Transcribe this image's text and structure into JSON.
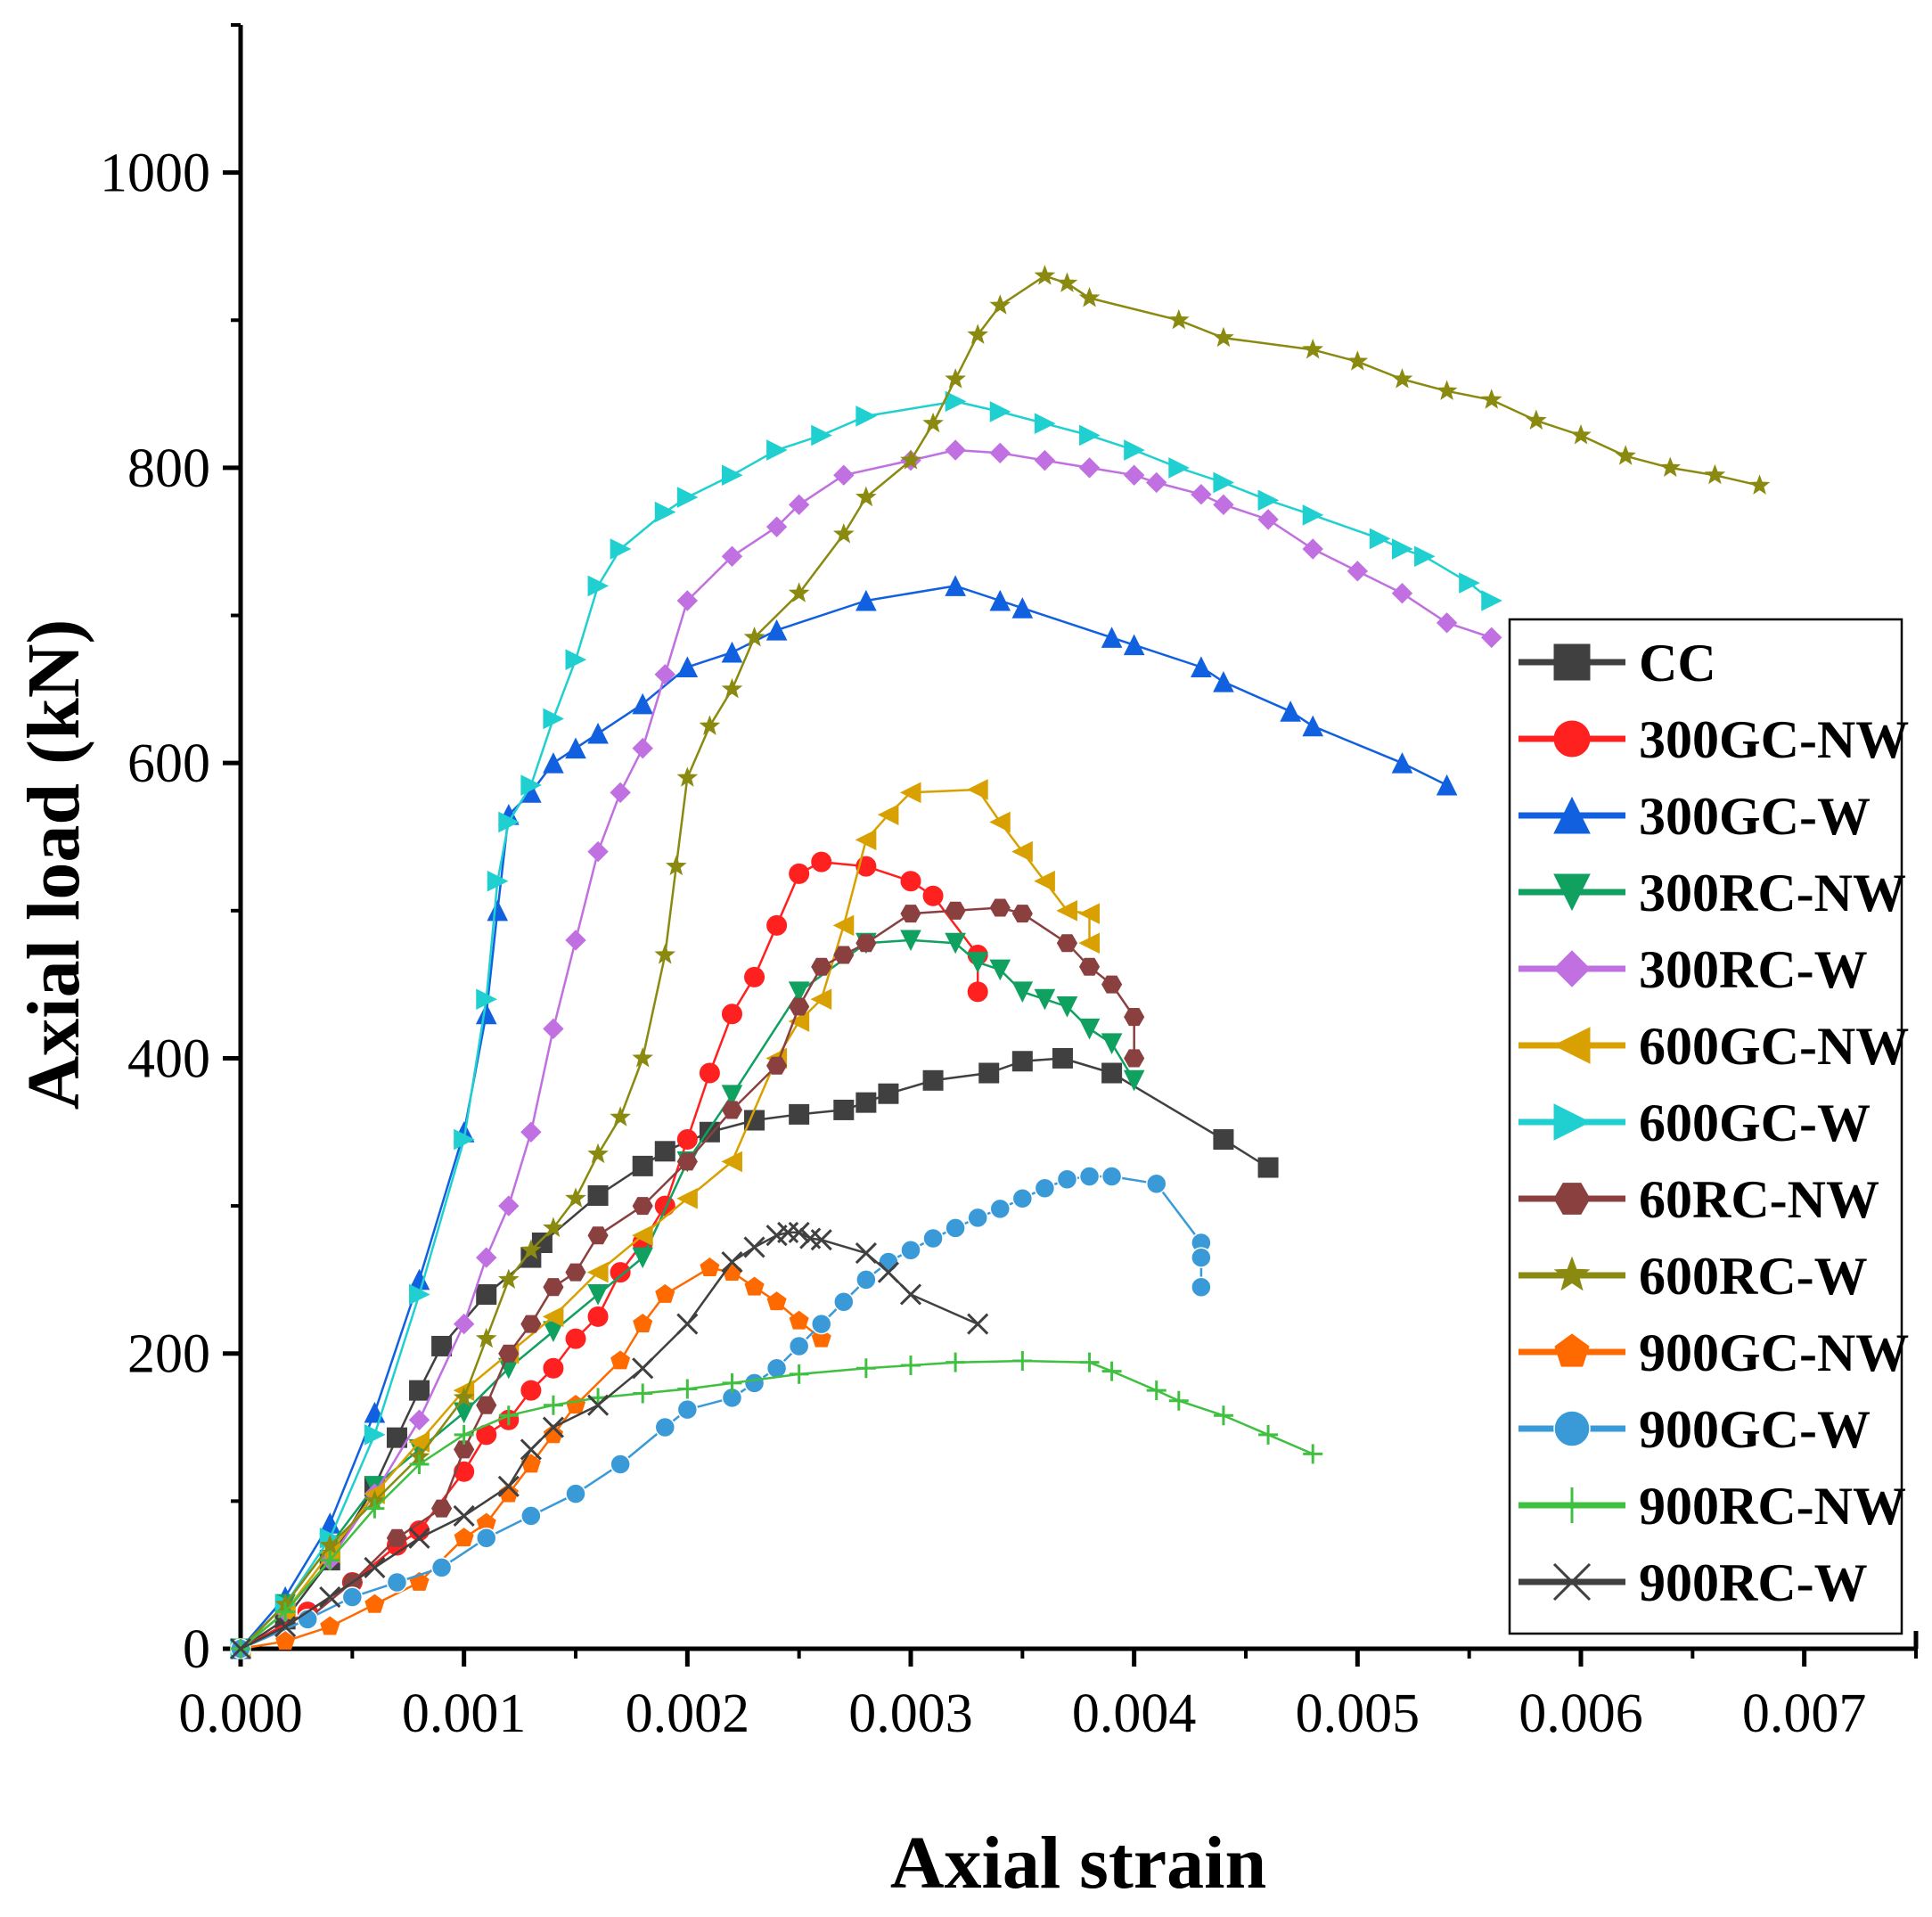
{
  "chart_data": {
    "type": "line",
    "xlabel": "Axial strain",
    "ylabel": "Axial load (kN)",
    "xlim": [
      0,
      0.0075
    ],
    "ylim": [
      0,
      1100
    ],
    "x_ticks": [
      "0.000",
      "0.001",
      "0.002",
      "0.003",
      "0.004",
      "0.005",
      "0.006",
      "0.007"
    ],
    "y_ticks": [
      "0",
      "200",
      "400",
      "600",
      "800",
      "1000"
    ],
    "x_tick_values": [
      0,
      0.001,
      0.002,
      0.003,
      0.004,
      0.005,
      0.006,
      0.007
    ],
    "y_tick_values": [
      0,
      200,
      400,
      600,
      800,
      1000
    ],
    "legend_position": "right",
    "series": [
      {
        "name": "CC",
        "color": "#404040",
        "marker": "square",
        "x": [
          0.0,
          0.0002,
          0.0004,
          0.0006,
          0.0007,
          0.0008,
          0.0009,
          0.0011,
          0.0013,
          0.00135,
          0.0016,
          0.0018,
          0.0019,
          0.0021,
          0.0023,
          0.0025,
          0.0027,
          0.0028,
          0.0029,
          0.0031,
          0.00335,
          0.0035,
          0.00368,
          0.0039,
          0.0044,
          0.0046
        ],
        "y": [
          0,
          20,
          60,
          110,
          143,
          175,
          205,
          240,
          265,
          275,
          307,
          327,
          337,
          350,
          358,
          362,
          365,
          370,
          376,
          385,
          390,
          398,
          400,
          390,
          345,
          326
        ]
      },
      {
        "name": "300GC-NW",
        "color": "#ff2020",
        "marker": "circle",
        "x": [
          0.0,
          0.0003,
          0.0005,
          0.0007,
          0.0008,
          0.001,
          0.0011,
          0.0012,
          0.0013,
          0.0014,
          0.0015,
          0.0016,
          0.0017,
          0.0018,
          0.0019,
          0.002,
          0.0021,
          0.0022,
          0.0023,
          0.0024,
          0.0025,
          0.0026,
          0.0028,
          0.003,
          0.0031,
          0.0033,
          0.0033
        ],
        "y": [
          0,
          25,
          45,
          70,
          80,
          120,
          145,
          155,
          175,
          190,
          210,
          225,
          255,
          275,
          300,
          345,
          390,
          430,
          455,
          490,
          525,
          533,
          530,
          520,
          510,
          470,
          445
        ]
      },
      {
        "name": "300GC-W",
        "color": "#1060e0",
        "marker": "triangle-up",
        "x": [
          0.0,
          0.0002,
          0.0004,
          0.0006,
          0.0008,
          0.001,
          0.0011,
          0.00115,
          0.0012,
          0.0013,
          0.0014,
          0.0015,
          0.0016,
          0.0018,
          0.002,
          0.0022,
          0.0024,
          0.0028,
          0.0032,
          0.0034,
          0.0035,
          0.0039,
          0.004,
          0.0043,
          0.0044,
          0.0047,
          0.0048,
          0.0052,
          0.0054
        ],
        "y": [
          0,
          35,
          85,
          160,
          250,
          350,
          430,
          500,
          565,
          580,
          600,
          610,
          620,
          640,
          665,
          675,
          690,
          710,
          720,
          710,
          705,
          685,
          680,
          665,
          655,
          635,
          625,
          600,
          585
        ]
      },
      {
        "name": "300RC-NW",
        "color": "#10a060",
        "marker": "triangle-down",
        "x": [
          0.0,
          0.0002,
          0.0004,
          0.0006,
          0.0008,
          0.001,
          0.0012,
          0.0014,
          0.0016,
          0.0018,
          0.002,
          0.0022,
          0.0025,
          0.0028,
          0.003,
          0.0032,
          0.0033,
          0.0034,
          0.0035,
          0.0036,
          0.0037,
          0.0038,
          0.0039,
          0.004
        ],
        "y": [
          0,
          30,
          70,
          110,
          135,
          160,
          190,
          215,
          240,
          265,
          330,
          375,
          445,
          478,
          480,
          478,
          465,
          460,
          445,
          440,
          435,
          420,
          410,
          385
        ]
      },
      {
        "name": "300RC-W",
        "color": "#c070e0",
        "marker": "diamond",
        "x": [
          0.0,
          0.0002,
          0.0004,
          0.0006,
          0.0008,
          0.001,
          0.0011,
          0.0012,
          0.0013,
          0.0014,
          0.0015,
          0.0016,
          0.0017,
          0.0018,
          0.0019,
          0.002,
          0.0022,
          0.0024,
          0.0025,
          0.0027,
          0.003,
          0.0032,
          0.0034,
          0.0036,
          0.0038,
          0.004,
          0.0041,
          0.0043,
          0.0044,
          0.0046,
          0.0048,
          0.005,
          0.0052,
          0.0054,
          0.0056
        ],
        "y": [
          0,
          25,
          60,
          105,
          155,
          220,
          265,
          300,
          350,
          420,
          480,
          540,
          580,
          610,
          660,
          710,
          740,
          760,
          775,
          795,
          805,
          812,
          810,
          805,
          800,
          795,
          790,
          782,
          775,
          765,
          745,
          730,
          715,
          695,
          685
        ]
      },
      {
        "name": "600GC-NW",
        "color": "#d8a000",
        "marker": "triangle-left",
        "x": [
          0.0,
          0.0002,
          0.0004,
          0.0006,
          0.0008,
          0.001,
          0.0012,
          0.0014,
          0.0016,
          0.0018,
          0.002,
          0.0022,
          0.0024,
          0.0025,
          0.0026,
          0.0027,
          0.0028,
          0.0029,
          0.003,
          0.0033,
          0.0034,
          0.0035,
          0.0036,
          0.0037,
          0.0038,
          0.0038
        ],
        "y": [
          0,
          25,
          65,
          105,
          140,
          175,
          200,
          225,
          255,
          280,
          305,
          330,
          400,
          425,
          440,
          490,
          548,
          565,
          580,
          582,
          560,
          540,
          520,
          500,
          498,
          478
        ]
      },
      {
        "name": "600GC-W",
        "color": "#20d0d0",
        "marker": "triangle-right",
        "x": [
          0.0,
          0.0002,
          0.0004,
          0.0006,
          0.0008,
          0.001,
          0.0011,
          0.00115,
          0.0012,
          0.0013,
          0.0014,
          0.0015,
          0.0016,
          0.0017,
          0.0019,
          0.002,
          0.0022,
          0.0024,
          0.0026,
          0.0028,
          0.0032,
          0.0034,
          0.0036,
          0.0038,
          0.004,
          0.0042,
          0.0044,
          0.0046,
          0.0048,
          0.0051,
          0.0052,
          0.0053,
          0.0055,
          0.0056
        ],
        "y": [
          0,
          30,
          75,
          145,
          240,
          345,
          440,
          520,
          560,
          585,
          630,
          670,
          720,
          745,
          770,
          780,
          795,
          812,
          822,
          835,
          845,
          838,
          830,
          822,
          812,
          800,
          790,
          778,
          768,
          752,
          745,
          740,
          722,
          710
        ]
      },
      {
        "name": "60RC-NW",
        "color": "#8b4040",
        "marker": "hexagon",
        "x": [
          0.0,
          0.0003,
          0.0005,
          0.0007,
          0.0009,
          0.001,
          0.0011,
          0.0012,
          0.0013,
          0.0014,
          0.0015,
          0.0016,
          0.0018,
          0.002,
          0.0022,
          0.0024,
          0.0025,
          0.0026,
          0.0027,
          0.0028,
          0.003,
          0.0032,
          0.0034,
          0.0035,
          0.0037,
          0.0038,
          0.0039,
          0.004,
          0.004
        ],
        "y": [
          0,
          20,
          45,
          75,
          95,
          135,
          165,
          200,
          220,
          245,
          255,
          280,
          300,
          330,
          365,
          395,
          435,
          462,
          470,
          478,
          498,
          500,
          502,
          498,
          478,
          462,
          450,
          428,
          400
        ]
      },
      {
        "name": "600RC-W",
        "color": "#8a8a10",
        "marker": "star",
        "x": [
          0.0,
          0.0002,
          0.0004,
          0.0006,
          0.0008,
          0.001,
          0.0011,
          0.0012,
          0.0013,
          0.0014,
          0.0015,
          0.0016,
          0.0017,
          0.0018,
          0.0019,
          0.00195,
          0.002,
          0.0021,
          0.0022,
          0.0023,
          0.0025,
          0.0027,
          0.0028,
          0.003,
          0.0031,
          0.0032,
          0.0033,
          0.0034,
          0.0036,
          0.0037,
          0.0038,
          0.0042,
          0.0044,
          0.0048,
          0.005,
          0.0052,
          0.0054,
          0.0056,
          0.0058,
          0.006,
          0.0062,
          0.0064,
          0.0066,
          0.0068
        ],
        "y": [
          0,
          30,
          70,
          100,
          130,
          170,
          210,
          250,
          270,
          285,
          305,
          335,
          360,
          400,
          470,
          530,
          590,
          625,
          650,
          685,
          715,
          755,
          780,
          805,
          830,
          860,
          890,
          910,
          930,
          925,
          915,
          900,
          888,
          880,
          872,
          860,
          852,
          846,
          832,
          822,
          808,
          800,
          795,
          788
        ]
      },
      {
        "name": "900GC-NW",
        "color": "#ff6a00",
        "marker": "pentagon",
        "x": [
          0.0,
          0.0002,
          0.0004,
          0.0006,
          0.0008,
          0.001,
          0.0011,
          0.0012,
          0.0013,
          0.0014,
          0.0015,
          0.0017,
          0.0018,
          0.0019,
          0.0021,
          0.0022,
          0.0023,
          0.0024,
          0.0025,
          0.0026
        ],
        "y": [
          0,
          5,
          15,
          30,
          45,
          75,
          85,
          105,
          125,
          145,
          165,
          195,
          220,
          240,
          258,
          255,
          245,
          235,
          222,
          210
        ]
      },
      {
        "name": "900GC-W",
        "color": "#3a9ad8",
        "marker": "sphere",
        "x": [
          0.0,
          0.0003,
          0.0005,
          0.0007,
          0.0009,
          0.0011,
          0.0013,
          0.0015,
          0.0017,
          0.0019,
          0.002,
          0.0022,
          0.0023,
          0.0024,
          0.0025,
          0.0026,
          0.0027,
          0.0028,
          0.0029,
          0.003,
          0.0031,
          0.0032,
          0.0033,
          0.0034,
          0.0035,
          0.0036,
          0.0037,
          0.0038,
          0.0039,
          0.0041,
          0.0043,
          0.0043,
          0.0043
        ],
        "y": [
          0,
          20,
          35,
          45,
          55,
          75,
          90,
          105,
          125,
          150,
          162,
          170,
          180,
          190,
          205,
          220,
          235,
          250,
          262,
          270,
          278,
          285,
          292,
          298,
          305,
          312,
          318,
          320,
          320,
          315,
          275,
          265,
          245
        ]
      },
      {
        "name": "900RC-NW",
        "color": "#40c040",
        "marker": "plus",
        "x": [
          0.0,
          0.0002,
          0.0004,
          0.0006,
          0.0008,
          0.001,
          0.0012,
          0.0014,
          0.0016,
          0.0018,
          0.002,
          0.0022,
          0.0025,
          0.0028,
          0.003,
          0.0032,
          0.0035,
          0.0038,
          0.0039,
          0.0041,
          0.0042,
          0.0044,
          0.0046,
          0.0048
        ],
        "y": [
          0,
          25,
          60,
          95,
          125,
          145,
          158,
          165,
          170,
          173,
          176,
          180,
          186,
          190,
          192,
          194,
          195,
          194,
          188,
          175,
          168,
          158,
          145,
          132
        ]
      },
      {
        "name": "900RC-W",
        "color": "#404040",
        "marker": "x",
        "x": [
          0.0,
          0.0002,
          0.0004,
          0.0006,
          0.0008,
          0.001,
          0.0012,
          0.0013,
          0.0014,
          0.0016,
          0.0018,
          0.002,
          0.0022,
          0.0023,
          0.0024,
          0.00245,
          0.0025,
          0.00255,
          0.0026,
          0.0028,
          0.0029,
          0.003,
          0.0033
        ],
        "y": [
          0,
          15,
          35,
          55,
          75,
          90,
          110,
          135,
          150,
          165,
          190,
          220,
          262,
          272,
          280,
          282,
          282,
          278,
          277,
          268,
          255,
          240,
          220
        ]
      }
    ]
  }
}
